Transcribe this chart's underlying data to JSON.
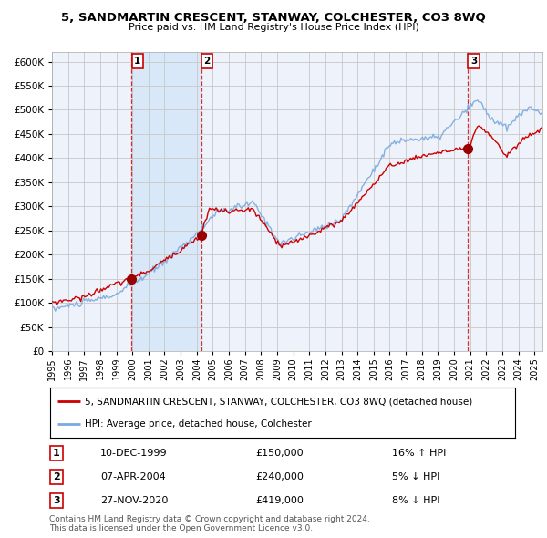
{
  "title": "5, SANDMARTIN CRESCENT, STANWAY, COLCHESTER, CO3 8WQ",
  "subtitle": "Price paid vs. HM Land Registry's House Price Index (HPI)",
  "legend_label1": "5, SANDMARTIN CRESCENT, STANWAY, COLCHESTER, CO3 8WQ (detached house)",
  "legend_label2": "HPI: Average price, detached house, Colchester",
  "sale1_date": "10-DEC-1999",
  "sale1_price": 150000,
  "sale1_hpi": "16% ↑ HPI",
  "sale2_date": "07-APR-2004",
  "sale2_price": 240000,
  "sale2_hpi": "5% ↓ HPI",
  "sale3_date": "27-NOV-2020",
  "sale3_price": 419000,
  "sale3_hpi": "8% ↓ HPI",
  "footnote": "Contains HM Land Registry data © Crown copyright and database right 2024.\nThis data is licensed under the Open Government Licence v3.0.",
  "bg_color": "#ffffff",
  "plot_bg": "#eef2fb",
  "grid_color": "#c8c8c8",
  "red_line_color": "#cc0000",
  "blue_line_color": "#7aaadd",
  "shaded_color": "#d8e8f8",
  "dashed_color": "#cc0000",
  "ylim": [
    0,
    620000
  ],
  "yticks": [
    0,
    50000,
    100000,
    150000,
    200000,
    250000,
    300000,
    350000,
    400000,
    450000,
    500000,
    550000,
    600000
  ],
  "xlim_start": 1995,
  "xlim_end": 2025.5
}
